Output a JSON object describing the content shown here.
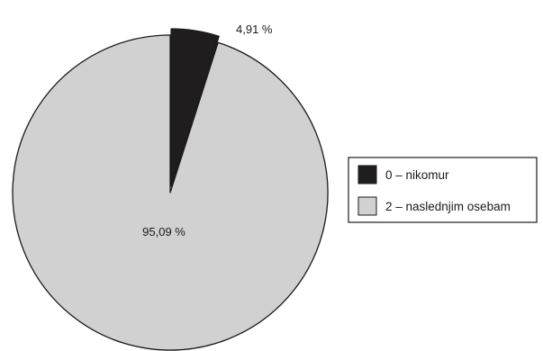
{
  "chart_data": {
    "type": "pie",
    "slices": [
      {
        "label": "0 – nikomur",
        "value": 4.91,
        "value_label": "4,91 %",
        "color": "#1f1d1e",
        "exploded": true
      },
      {
        "label": "2 – naslednjim osebam",
        "value": 95.09,
        "value_label": "95,09 %",
        "color": "#d1d1d1",
        "exploded": false
      }
    ],
    "legend_position": "right",
    "start_angle": "12 o'clock, clockwise"
  },
  "colors": {
    "outline": "#1a1a1a",
    "background": "#ffffff"
  }
}
